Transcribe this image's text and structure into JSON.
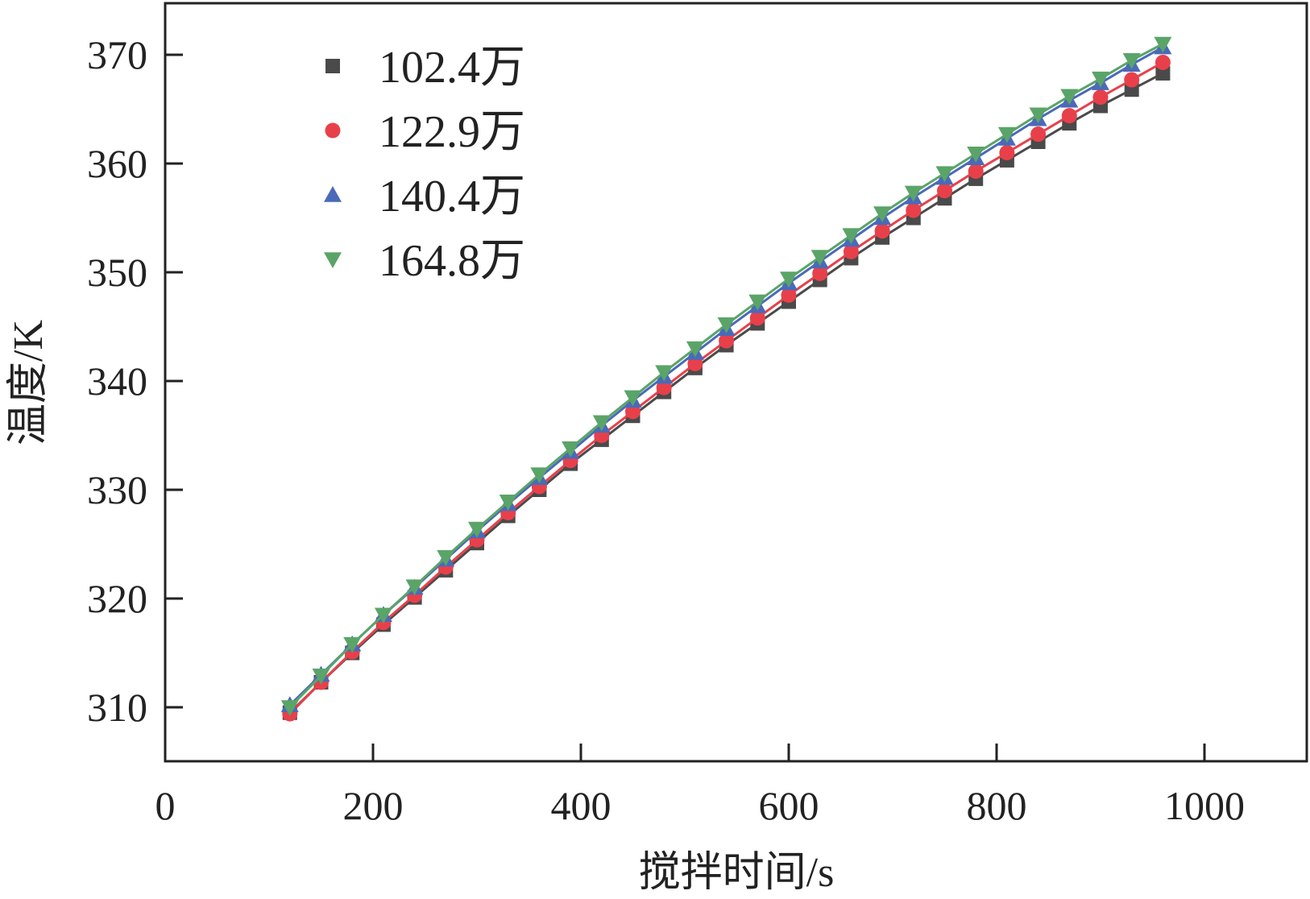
{
  "chart_data": {
    "type": "line",
    "xlabel": "搅拌时间/s",
    "ylabel": "温度/K",
    "xlim": [
      0,
      1100
    ],
    "ylim": [
      305,
      376
    ],
    "x_ticks": [
      0,
      200,
      400,
      600,
      800,
      1000
    ],
    "y_ticks": [
      310,
      320,
      330,
      340,
      350,
      360,
      370
    ],
    "grid": false,
    "legend_position": "top-left",
    "x": [
      120,
      150,
      180,
      210,
      240,
      270,
      300,
      330,
      360,
      390,
      420,
      450,
      480,
      510,
      540,
      570,
      600,
      630,
      660,
      690,
      720,
      750,
      780,
      810,
      840,
      870,
      900,
      930,
      960
    ],
    "series": [
      {
        "name": "102.4万",
        "color": "#4a4a4a",
        "marker": "square",
        "values": [
          309.5,
          312.3,
          315.0,
          317.6,
          320.1,
          322.6,
          325.1,
          327.6,
          330.0,
          332.4,
          334.6,
          336.8,
          339.0,
          341.2,
          343.3,
          345.3,
          347.3,
          349.3,
          351.3,
          353.2,
          355.0,
          356.8,
          358.6,
          360.3,
          362.0,
          363.7,
          365.3,
          366.8,
          368.3
        ]
      },
      {
        "name": "122.9万",
        "color": "#e8404a",
        "marker": "circle",
        "values": [
          309.4,
          312.3,
          315.1,
          317.8,
          320.3,
          322.9,
          325.4,
          327.9,
          330.3,
          332.7,
          335.0,
          337.2,
          339.4,
          341.6,
          343.7,
          345.8,
          347.9,
          349.9,
          351.9,
          353.8,
          355.7,
          357.5,
          359.3,
          361.0,
          362.7,
          364.4,
          366.1,
          367.7,
          369.3
        ]
      },
      {
        "name": "140.4万",
        "color": "#4a6ab8",
        "marker": "triangle-up",
        "values": [
          310.2,
          313.0,
          315.8,
          318.5,
          321.0,
          323.6,
          326.2,
          328.7,
          331.1,
          333.5,
          335.9,
          338.2,
          340.4,
          342.6,
          344.8,
          346.9,
          349.0,
          351.0,
          353.0,
          355.0,
          356.9,
          358.7,
          360.5,
          362.3,
          364.1,
          365.8,
          367.4,
          369.1,
          370.7
        ]
      },
      {
        "name": "164.8万",
        "color": "#5aa468",
        "marker": "triangle-down",
        "values": [
          310.0,
          312.9,
          315.8,
          318.5,
          321.1,
          323.8,
          326.4,
          328.9,
          331.4,
          333.8,
          336.2,
          338.5,
          340.8,
          343.0,
          345.2,
          347.3,
          349.4,
          351.4,
          353.4,
          355.4,
          357.3,
          359.1,
          360.9,
          362.7,
          364.5,
          366.2,
          367.8,
          369.5,
          371.0
        ]
      }
    ]
  }
}
